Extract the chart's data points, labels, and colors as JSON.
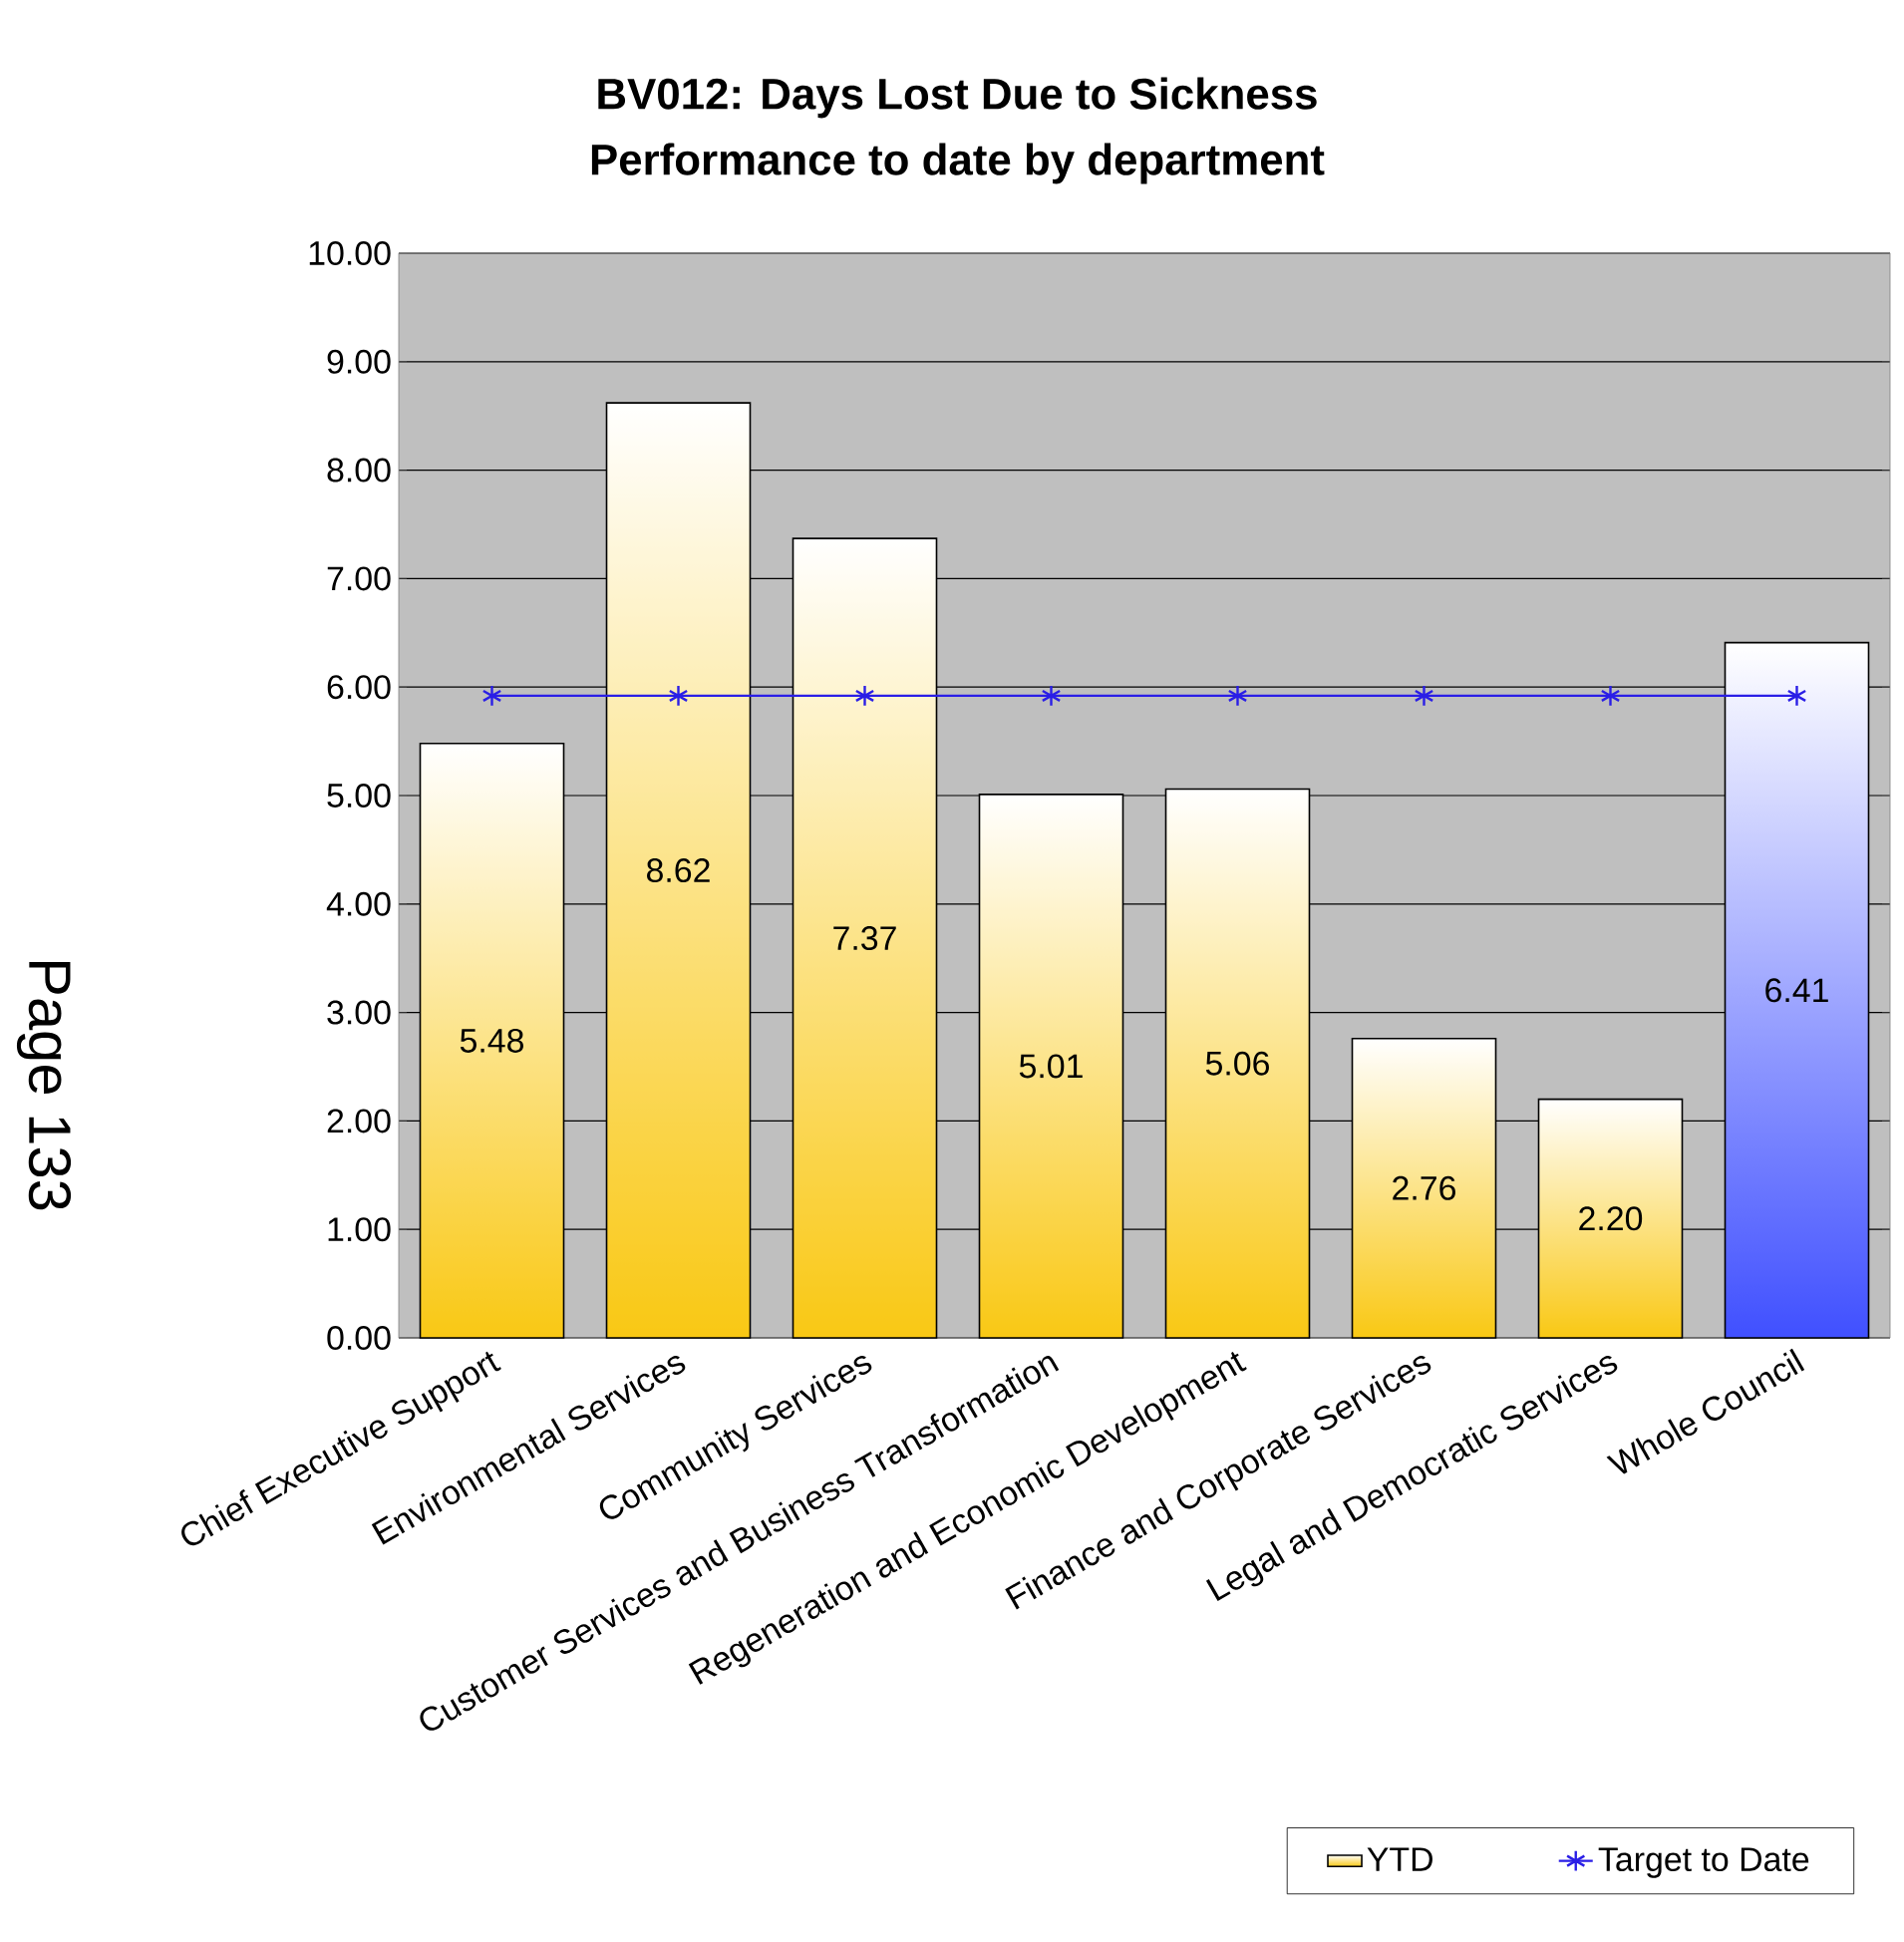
{
  "chart_data": {
    "type": "bar",
    "title": "BV012: Days Lost Due to Sickness",
    "subtitle": "Performance to date by department",
    "categories": [
      "Chief Executive Support",
      "Environmental Services",
      "Community Services",
      "Customer Services and Business Transformation",
      "Regeneration and Economic Development",
      "Finance and Corporate Services",
      "Legal and Democratic Services",
      "Whole Council"
    ],
    "series": [
      {
        "name": "YTD",
        "color": "#f9c814",
        "colors": [
          "#f9c814",
          "#f9c814",
          "#f9c814",
          "#f9c814",
          "#f9c814",
          "#f9c814",
          "#f9c814",
          "#4050ff"
        ],
        "values": [
          5.48,
          8.62,
          7.37,
          5.01,
          5.06,
          2.76,
          2.2,
          6.41
        ],
        "value_labels": [
          "5.48",
          "8.62",
          "7.37",
          "5.01",
          "5.06",
          "2.76",
          "2.20",
          "6.41"
        ]
      },
      {
        "name": "Target to Date",
        "type": "line",
        "color": "#2a1ee6",
        "marker": "cross",
        "values": [
          5.92,
          5.92,
          5.92,
          5.92,
          5.92,
          5.92,
          5.92,
          5.92
        ]
      }
    ],
    "ylim": [
      0,
      10
    ],
    "yticks": [
      {
        "value": 0,
        "label": "0.00"
      },
      {
        "value": 1,
        "label": "1.00"
      },
      {
        "value": 2,
        "label": "2.00"
      },
      {
        "value": 3,
        "label": "3.00"
      },
      {
        "value": 4,
        "label": "4.00"
      },
      {
        "value": 5,
        "label": "5.00"
      },
      {
        "value": 6,
        "label": "6.00"
      },
      {
        "value": 7,
        "label": "7.00"
      },
      {
        "value": 8,
        "label": "8.00"
      },
      {
        "value": 9,
        "label": "9.00"
      },
      {
        "value": 10,
        "label": "10.00"
      }
    ],
    "grid": "y",
    "legend": "bottom right",
    "annotations": [
      "Page 133"
    ]
  }
}
